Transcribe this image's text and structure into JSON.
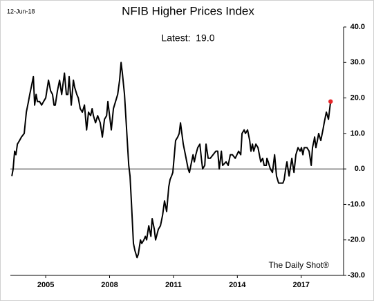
{
  "chart_data": {
    "type": "line",
    "title": "NFIB Higher Prices Index",
    "subtitle": "Latest:  19.0",
    "date_label": "12-Jun-18",
    "source": "The Daily Shot®",
    "x": [
      2003.41,
      2003.47,
      2003.54,
      2003.6,
      2003.67,
      2003.77,
      2003.86,
      2003.99,
      2004.09,
      2004.19,
      2004.25,
      2004.32,
      2004.42,
      2004.48,
      2004.55,
      2004.61,
      2004.71,
      2004.81,
      2004.9,
      2005.0,
      2005.13,
      2005.23,
      2005.32,
      2005.39,
      2005.45,
      2005.55,
      2005.65,
      2005.75,
      2005.88,
      2005.97,
      2006.04,
      2006.1,
      2006.2,
      2006.3,
      2006.36,
      2006.46,
      2006.53,
      2006.62,
      2006.72,
      2006.82,
      2006.92,
      2007.01,
      2007.11,
      2007.18,
      2007.24,
      2007.34,
      2007.44,
      2007.56,
      2007.66,
      2007.76,
      2007.86,
      2007.92,
      2008.08,
      2008.18,
      2008.28,
      2008.38,
      2008.47,
      2008.54,
      2008.6,
      2008.7,
      2008.77,
      2008.9,
      2008.96,
      2009.03,
      2009.12,
      2009.19,
      2009.29,
      2009.35,
      2009.45,
      2009.51,
      2009.61,
      2009.68,
      2009.74,
      2009.84,
      2009.94,
      2010.0,
      2010.1,
      2010.16,
      2010.29,
      2010.39,
      2010.49,
      2010.58,
      2010.68,
      2010.78,
      2010.84,
      2010.91,
      2010.97,
      2011.1,
      2011.2,
      2011.27,
      2011.33,
      2011.46,
      2011.56,
      2011.69,
      2011.75,
      2011.85,
      2011.92,
      2011.98,
      2012.05,
      2012.14,
      2012.24,
      2012.31,
      2012.37,
      2012.47,
      2012.53,
      2012.63,
      2012.73,
      2012.86,
      2012.99,
      2013.08,
      2013.15,
      2013.25,
      2013.31,
      2013.47,
      2013.57,
      2013.67,
      2013.77,
      2013.9,
      2014.06,
      2014.16,
      2014.22,
      2014.32,
      2014.38,
      2014.48,
      2014.58,
      2014.64,
      2014.71,
      2014.77,
      2014.87,
      2014.97,
      2015.1,
      2015.19,
      2015.26,
      2015.36,
      2015.39,
      2015.45,
      2015.55,
      2015.65,
      2015.75,
      2015.84,
      2015.94,
      2016.04,
      2016.14,
      2016.2,
      2016.27,
      2016.33,
      2016.43,
      2016.56,
      2016.66,
      2016.75,
      2016.85,
      2016.95,
      2017.01,
      2017.08,
      2017.14,
      2017.27,
      2017.37,
      2017.47,
      2017.53,
      2017.6,
      2017.63,
      2017.69,
      2017.76,
      2017.82,
      2017.92,
      2018.02,
      2018.08,
      2018.18,
      2018.28,
      2018.38
    ],
    "series": [
      {
        "color": "#000000",
        "marker_color": "#e8262a",
        "values": [
          -2,
          0,
          5,
          4,
          7,
          8,
          9,
          10,
          16,
          19,
          21,
          23,
          26,
          18,
          21,
          19,
          19,
          18,
          19,
          20,
          25,
          22,
          21,
          18,
          18,
          22,
          25,
          21,
          27,
          21,
          21,
          26,
          18,
          25,
          23,
          21,
          20,
          17,
          16,
          18,
          11,
          16,
          15,
          17,
          15,
          13,
          15,
          13,
          9,
          14,
          15,
          19,
          11,
          17,
          19,
          21,
          25,
          30,
          27,
          21,
          14,
          1,
          -2,
          -10,
          -21,
          -23,
          -25,
          -24,
          -20,
          -21,
          -20,
          -19,
          -20,
          -16,
          -19,
          -14,
          -17,
          -20,
          -17,
          -16,
          -13,
          -9,
          -12,
          -5,
          -3,
          -2,
          -1,
          8,
          9,
          10,
          13,
          7,
          4,
          0,
          -1,
          2,
          4,
          2,
          4,
          6,
          7,
          3,
          0,
          1,
          7,
          3,
          3,
          4,
          5,
          5,
          0,
          5,
          1,
          2,
          1,
          4,
          4,
          3,
          5,
          4,
          10,
          11,
          10,
          11,
          8,
          5,
          7,
          5,
          7,
          6,
          2,
          3,
          1,
          1,
          3,
          2,
          0,
          -1,
          4,
          -2,
          -4,
          -4,
          -4,
          -3,
          0,
          2,
          -2,
          3,
          -1,
          4,
          6,
          5,
          6,
          4,
          6,
          6,
          5,
          1,
          6,
          8,
          9,
          6,
          8,
          10,
          8,
          11,
          13,
          16,
          14,
          19
        ]
      }
    ],
    "xlim": [
      2003.34,
      2018.99
    ],
    "xticks": [
      2005,
      2008,
      2011,
      2014,
      2017
    ],
    "ylim": [
      -30,
      40
    ],
    "yticks": [
      {
        "value": -30,
        "label": "-30.0"
      },
      {
        "value": -20,
        "label": "-20.0"
      },
      {
        "value": -10,
        "label": "-10.0"
      },
      {
        "value": 0,
        "label": "0.0"
      },
      {
        "value": 10,
        "label": "10.0"
      },
      {
        "value": 20,
        "label": "20.0"
      },
      {
        "value": 30,
        "label": "30.0"
      },
      {
        "value": 40,
        "label": "40.0"
      }
    ],
    "reference_line": 0
  }
}
